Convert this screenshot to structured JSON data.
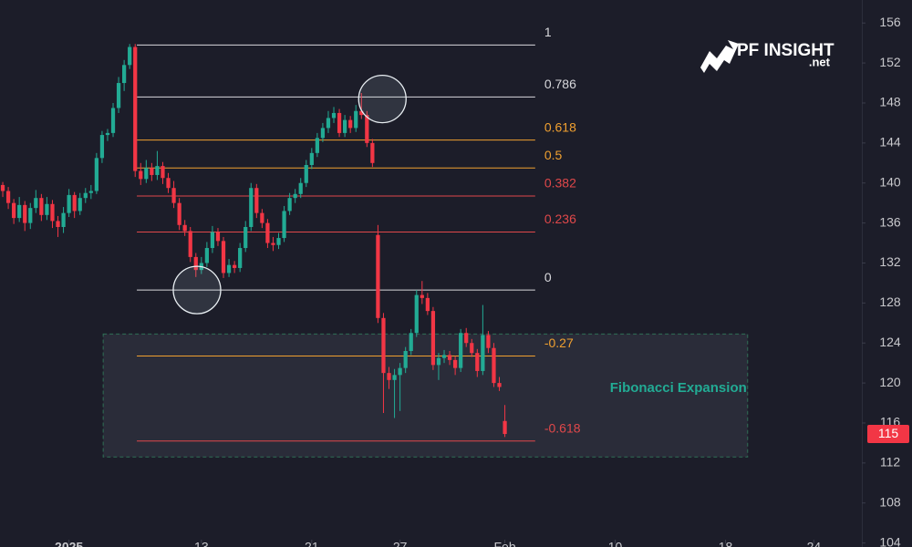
{
  "chart_data": {
    "type": "candlestick",
    "up_color": "#22ab94",
    "down_color": "#f23645",
    "ylim": [
      103.6,
      158.3
    ],
    "yticks": [
      104,
      108,
      112,
      116,
      120,
      124,
      128,
      132,
      136,
      140,
      144,
      148,
      152,
      156
    ],
    "xlim": [
      -0.5,
      155.7
    ],
    "xticks": [
      {
        "value": 12,
        "label": "2025"
      },
      {
        "value": 36,
        "label": "13"
      },
      {
        "value": 56,
        "label": "21"
      },
      {
        "value": 72,
        "label": "27"
      },
      {
        "value": 91,
        "label": "Feb"
      },
      {
        "value": 111,
        "label": "10"
      },
      {
        "value": 131,
        "label": "18"
      },
      {
        "value": 147,
        "label": "24"
      }
    ],
    "ohlc": [
      [
        139.8,
        140.1,
        138.6,
        139.2
      ],
      [
        139.2,
        139.6,
        137.4,
        138.0
      ],
      [
        138.0,
        138.4,
        135.9,
        136.5
      ],
      [
        136.5,
        138.6,
        136.1,
        137.8
      ],
      [
        137.8,
        138.2,
        135.2,
        136.0
      ],
      [
        136.0,
        138.0,
        135.4,
        137.5
      ],
      [
        137.5,
        139.3,
        137.0,
        138.5
      ],
      [
        138.5,
        138.9,
        136.2,
        136.8
      ],
      [
        136.8,
        138.6,
        136.3,
        137.9
      ],
      [
        137.9,
        138.3,
        135.5,
        136.2
      ],
      [
        136.2,
        136.7,
        134.6,
        135.6
      ],
      [
        135.6,
        137.6,
        135.0,
        137.0
      ],
      [
        137.0,
        139.4,
        136.6,
        138.8
      ],
      [
        138.8,
        139.1,
        136.5,
        137.2
      ],
      [
        137.2,
        139.0,
        136.8,
        138.5
      ],
      [
        138.5,
        139.5,
        138.0,
        139.0
      ],
      [
        139.0,
        139.8,
        138.4,
        139.2
      ],
      [
        139.2,
        143.0,
        138.9,
        142.5
      ],
      [
        142.5,
        145.2,
        142.0,
        144.8
      ],
      [
        144.8,
        145.4,
        144.2,
        145.0
      ],
      [
        145.0,
        148.0,
        144.6,
        147.5
      ],
      [
        147.5,
        150.6,
        147.0,
        150.0
      ],
      [
        150.0,
        152.3,
        149.2,
        151.8
      ],
      [
        151.8,
        153.9,
        151.4,
        153.6
      ],
      [
        153.6,
        153.9,
        140.6,
        141.2
      ],
      [
        141.2,
        142.0,
        139.8,
        140.4
      ],
      [
        140.4,
        142.3,
        140.0,
        141.5
      ],
      [
        141.5,
        142.0,
        140.2,
        140.8
      ],
      [
        140.8,
        143.2,
        140.3,
        141.7
      ],
      [
        141.7,
        142.1,
        139.9,
        140.5
      ],
      [
        140.5,
        141.0,
        139.0,
        139.5
      ],
      [
        139.5,
        140.2,
        137.5,
        138.0
      ],
      [
        138.0,
        138.5,
        135.3,
        135.8
      ],
      [
        135.8,
        136.3,
        134.7,
        135.2
      ],
      [
        135.2,
        135.6,
        132.1,
        132.6
      ],
      [
        132.6,
        133.0,
        130.6,
        131.3
      ],
      [
        131.3,
        132.6,
        130.9,
        132.0
      ],
      [
        132.0,
        134.1,
        131.6,
        133.5
      ],
      [
        133.5,
        135.7,
        133.0,
        135.1
      ],
      [
        135.1,
        135.5,
        133.7,
        134.2
      ],
      [
        134.2,
        134.6,
        130.5,
        131.0
      ],
      [
        131.0,
        132.4,
        130.6,
        131.8
      ],
      [
        131.8,
        132.2,
        131.0,
        131.5
      ],
      [
        131.5,
        134.0,
        131.1,
        133.5
      ],
      [
        133.5,
        136.2,
        133.1,
        135.6
      ],
      [
        135.6,
        140.0,
        135.2,
        139.5
      ],
      [
        139.5,
        139.9,
        136.5,
        137.0
      ],
      [
        137.0,
        137.4,
        135.5,
        136.0
      ],
      [
        136.0,
        136.4,
        133.5,
        134.0
      ],
      [
        134.0,
        134.6,
        133.2,
        133.8
      ],
      [
        133.8,
        135.0,
        133.4,
        134.5
      ],
      [
        134.5,
        137.7,
        134.1,
        137.2
      ],
      [
        137.2,
        139.0,
        136.8,
        138.5
      ],
      [
        138.5,
        139.4,
        138.0,
        138.9
      ],
      [
        138.9,
        140.5,
        138.5,
        140.0
      ],
      [
        140.0,
        142.3,
        139.6,
        141.8
      ],
      [
        141.8,
        143.5,
        141.4,
        143.0
      ],
      [
        143.0,
        145.0,
        142.6,
        144.5
      ],
      [
        144.5,
        146.0,
        144.1,
        145.5
      ],
      [
        145.5,
        147.2,
        145.0,
        146.5
      ],
      [
        146.5,
        147.6,
        146.0,
        147.0
      ],
      [
        147.0,
        147.4,
        144.6,
        145.0
      ],
      [
        145.0,
        146.8,
        144.6,
        146.3
      ],
      [
        146.3,
        146.7,
        145.0,
        145.5
      ],
      [
        145.5,
        147.8,
        145.1,
        147.2
      ],
      [
        147.2,
        149.0,
        146.4,
        146.8
      ],
      [
        146.8,
        147.2,
        143.6,
        144.0
      ],
      [
        144.0,
        144.4,
        141.6,
        142.0
      ],
      [
        134.8,
        135.8,
        126.0,
        126.5
      ],
      [
        126.5,
        127.0,
        117.0,
        121.0
      ],
      [
        121.0,
        121.6,
        119.4,
        120.3
      ],
      [
        120.3,
        121.4,
        116.5,
        120.8
      ],
      [
        120.8,
        122.0,
        117.2,
        121.5
      ],
      [
        121.5,
        123.6,
        121.0,
        123.2
      ],
      [
        123.2,
        125.4,
        122.8,
        125.0
      ],
      [
        125.0,
        129.3,
        124.6,
        128.8
      ],
      [
        128.8,
        130.2,
        127.9,
        128.5
      ],
      [
        128.5,
        129.0,
        126.8,
        127.2
      ],
      [
        127.2,
        127.6,
        121.3,
        121.8
      ],
      [
        121.8,
        123.0,
        120.3,
        122.5
      ],
      [
        122.5,
        123.3,
        122.0,
        122.8
      ],
      [
        122.8,
        123.2,
        121.8,
        122.3
      ],
      [
        122.3,
        122.7,
        120.8,
        121.5
      ],
      [
        121.5,
        125.4,
        121.1,
        125.0
      ],
      [
        125.0,
        125.5,
        123.6,
        124.0
      ],
      [
        124.0,
        124.4,
        122.6,
        123.0
      ],
      [
        123.0,
        123.4,
        120.6,
        121.2
      ],
      [
        121.2,
        127.8,
        120.8,
        124.8
      ],
      [
        124.8,
        125.2,
        123.0,
        123.5
      ],
      [
        123.5,
        124.0,
        119.6,
        120.0
      ],
      [
        120.0,
        120.6,
        119.2,
        119.6
      ],
      [
        116.2,
        117.8,
        114.6,
        114.9
      ]
    ],
    "last_price": {
      "value": 114.9,
      "label": "115"
    },
    "fib_x_range": [
      24.3,
      96.5
    ],
    "fib_levels": [
      {
        "label": "1",
        "value": 153.8,
        "color": "#d8d8dc"
      },
      {
        "label": "0.786",
        "value": 148.6,
        "color": "#d8d8dc"
      },
      {
        "label": "0.618",
        "value": 144.3,
        "color": "#f0a030"
      },
      {
        "label": "0.5",
        "value": 141.5,
        "color": "#f0a030"
      },
      {
        "label": "0.382",
        "value": 138.7,
        "color": "#e0484a"
      },
      {
        "label": "0.236",
        "value": 135.1,
        "color": "#e0484a"
      },
      {
        "label": "0",
        "value": 129.3,
        "color": "#d8d8dc"
      },
      {
        "label": "-0.27",
        "value": 122.7,
        "color": "#f0a030"
      },
      {
        "label": "-0.618",
        "value": 114.2,
        "color": "#e0484a"
      }
    ],
    "annotation_box": {
      "label": "Fibonacci Expansion",
      "x_range": [
        18.2,
        135.0
      ],
      "y_range": [
        112.6,
        124.9
      ]
    },
    "circles": [
      {
        "x": 35.2,
        "y": 129.3
      },
      {
        "x": 68.8,
        "y": 148.4
      }
    ],
    "logo": {
      "text": "PF INSIGHT",
      "sub": ".net"
    }
  }
}
